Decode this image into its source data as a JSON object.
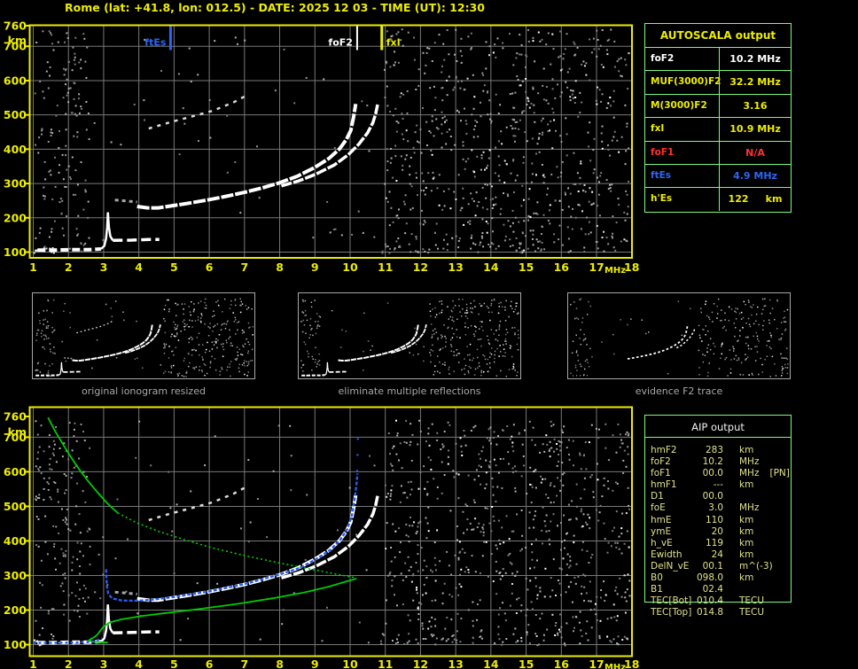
{
  "header": {
    "title": "Rome (lat: +41.8, lon: 012.5) - DATE: 2025 12 03 - TIME (UT): 12:30"
  },
  "autoscala": {
    "title": "AUTOSCALA output",
    "rows": [
      {
        "label": "foF2",
        "value": "10.2 MHz"
      },
      {
        "label": "MUF(3000)F2",
        "value": "32.2 MHz"
      },
      {
        "label": "M(3000)F2",
        "value": "3.16"
      },
      {
        "label": "fxI",
        "value": "10.9 MHz"
      },
      {
        "label": "foF1",
        "value": "N/A"
      },
      {
        "label": "ftEs",
        "value": "4.9 MHz"
      },
      {
        "label": "h'Es",
        "value": "122     km"
      }
    ]
  },
  "aip": {
    "title": "AIP output",
    "rows": [
      {
        "label": "hmF2",
        "value": "283",
        "unit": "km",
        "extra": ""
      },
      {
        "label": "foF2",
        "value": "10.2",
        "unit": "MHz",
        "extra": ""
      },
      {
        "label": "foF1",
        "value": "00.0",
        "unit": "MHz",
        "extra": "[PN]"
      },
      {
        "label": "hmF1",
        "value": "---",
        "unit": "km",
        "extra": ""
      },
      {
        "label": "D1",
        "value": "00.0",
        "unit": "",
        "extra": ""
      },
      {
        "label": "foE",
        "value": "3.0",
        "unit": "MHz",
        "extra": ""
      },
      {
        "label": "hmE",
        "value": "110",
        "unit": "km",
        "extra": ""
      },
      {
        "label": "ymE",
        "value": "20",
        "unit": "km",
        "extra": ""
      },
      {
        "label": "h_vE",
        "value": "119",
        "unit": "km",
        "extra": ""
      },
      {
        "label": "Ewidth",
        "value": "24",
        "unit": "km",
        "extra": ""
      },
      {
        "label": "DelN_vE",
        "value": "00.1",
        "unit": "m^(-3)",
        "extra": ""
      },
      {
        "label": "B0",
        "value": "098.0",
        "unit": "km",
        "extra": ""
      },
      {
        "label": "B1",
        "value": "02.4",
        "unit": "",
        "extra": ""
      },
      {
        "label": "TEC[Bot]",
        "value": "010.4",
        "unit": "TECU",
        "extra": ""
      },
      {
        "label": "TEC[Top]",
        "value": "014.8",
        "unit": "TECU",
        "extra": ""
      }
    ]
  },
  "thumbnails": [
    {
      "caption": "original ionogram resized",
      "traces": [
        "e",
        "cusp",
        "es",
        "ffrag",
        "f2o",
        "f2x",
        "hop2"
      ],
      "seed": 11,
      "noise": [
        [
          1.03,
          2.6,
          103,
          750,
          60,
          "g"
        ],
        [
          2.6,
          10.9,
          110,
          750,
          20,
          "g"
        ],
        [
          10.95,
          17.9,
          102,
          750,
          230,
          "g"
        ],
        [
          10.95,
          17.9,
          102,
          750,
          40,
          "w"
        ]
      ]
    },
    {
      "caption": "eliminate multiple reflections",
      "traces": [
        "e",
        "cusp",
        "es",
        "f2o",
        "f2x"
      ],
      "seed": 23,
      "noise": [
        [
          1.03,
          2.6,
          103,
          750,
          58,
          "g"
        ],
        [
          2.6,
          10.9,
          110,
          750,
          18,
          "g"
        ],
        [
          10.95,
          17.9,
          102,
          750,
          225,
          "g"
        ],
        [
          10.95,
          17.9,
          102,
          750,
          38,
          "w"
        ]
      ]
    },
    {
      "caption": "evidence F2 trace",
      "traces": [
        "e3",
        "spotA",
        "spotB",
        "f2o3",
        "f2x3"
      ],
      "seed": 37,
      "noise": [
        [
          1.03,
          2.6,
          103,
          750,
          40,
          "g"
        ],
        [
          2.6,
          10.9,
          110,
          750,
          14,
          "g"
        ],
        [
          10.95,
          17.9,
          102,
          750,
          175,
          "g"
        ],
        [
          10.95,
          17.9,
          102,
          750,
          28,
          "w"
        ]
      ]
    }
  ],
  "chart_data": {
    "type": "scatter",
    "x_label": "MHz",
    "y_label": "km",
    "x_range": [
      1,
      18
    ],
    "y_range": [
      100,
      760
    ],
    "x_ticks": [
      1,
      2,
      3,
      4,
      5,
      6,
      7,
      8,
      9,
      10,
      11,
      12,
      13,
      14,
      15,
      16,
      17,
      18
    ],
    "x_grid": [
      1,
      2,
      3,
      4,
      5,
      6,
      7,
      8,
      9,
      10,
      11,
      12,
      13,
      14,
      15,
      16,
      17
    ],
    "y_tick_labels": [
      760,
      700,
      600,
      500,
      400,
      300,
      200,
      100
    ],
    "y_grid": [
      100,
      200,
      300,
      400,
      500,
      600,
      700
    ],
    "traces": {
      "e": {
        "c": "#FFFFFF",
        "w": 4,
        "dash": "9 4",
        "pts": [
          [
            1.12,
            106
          ],
          [
            1.6,
            106
          ],
          [
            2.1,
            107
          ],
          [
            2.55,
            107
          ],
          [
            2.92,
            109
          ]
        ]
      },
      "cusp": {
        "c": "#FFFFFF",
        "w": 2.5,
        "dash": "",
        "pts": [
          [
            2.92,
            109
          ],
          [
            3.02,
            118
          ],
          [
            3.07,
            140
          ],
          [
            3.1,
            172
          ],
          [
            3.12,
            216
          ],
          [
            3.15,
            172
          ],
          [
            3.19,
            146
          ],
          [
            3.26,
            134
          ]
        ]
      },
      "es": {
        "c": "#FFFFFF",
        "w": 3.5,
        "dash": "11 5",
        "pts": [
          [
            3.26,
            134
          ],
          [
            3.8,
            135
          ],
          [
            4.3,
            137
          ],
          [
            4.58,
            137
          ]
        ]
      },
      "ffrag": {
        "c": "#A8A8A8",
        "w": 3,
        "dash": "4 4",
        "pts": [
          [
            3.32,
            252
          ],
          [
            3.65,
            249
          ],
          [
            3.95,
            246
          ]
        ]
      },
      "f2o": {
        "c": "#FFFFFF",
        "w": 4,
        "dash": "14 2",
        "pts": [
          [
            3.95,
            233
          ],
          [
            4.25,
            229
          ],
          [
            4.55,
            229
          ],
          [
            5.0,
            236
          ],
          [
            5.5,
            244
          ],
          [
            6.0,
            253
          ],
          [
            6.5,
            263
          ],
          [
            7.0,
            274
          ],
          [
            7.5,
            287
          ],
          [
            8.0,
            302
          ],
          [
            8.5,
            321
          ],
          [
            9.0,
            347
          ],
          [
            9.4,
            373
          ],
          [
            9.7,
            401
          ],
          [
            9.9,
            429
          ],
          [
            10.02,
            455
          ],
          [
            10.1,
            495
          ],
          [
            10.16,
            532
          ]
        ]
      },
      "f2x": {
        "c": "#FFFFFF",
        "w": 3.5,
        "dash": "12 2",
        "pts": [
          [
            8.05,
            293
          ],
          [
            8.55,
            308
          ],
          [
            9.05,
            328
          ],
          [
            9.55,
            354
          ],
          [
            9.95,
            384
          ],
          [
            10.25,
            415
          ],
          [
            10.5,
            448
          ],
          [
            10.65,
            478
          ],
          [
            10.73,
            505
          ],
          [
            10.78,
            530
          ]
        ]
      },
      "hop2": {
        "c": "#DCDCDC",
        "w": 2.5,
        "dash": "4 6",
        "pts": [
          [
            4.28,
            460
          ],
          [
            4.9,
            479
          ],
          [
            5.5,
            495
          ],
          [
            6.1,
            512
          ],
          [
            6.7,
            537
          ],
          [
            7.12,
            560
          ]
        ]
      },
      "e3": {
        "c": "#EEEEEE",
        "w": 2,
        "dash": "2 7",
        "pts": [
          [
            1.25,
            104
          ],
          [
            2.0,
            105
          ],
          [
            2.6,
            106
          ]
        ]
      },
      "spotA": {
        "c": "#FFFFFF",
        "w": 3,
        "dash": "",
        "pts": [
          [
            2.15,
            158
          ],
          [
            2.22,
            160
          ]
        ]
      },
      "spotB": {
        "c": "#FFFFFF",
        "w": 3,
        "dash": "",
        "pts": [
          [
            2.32,
            236
          ],
          [
            2.38,
            238
          ]
        ]
      },
      "f2o3": {
        "c": "#FFFFFF",
        "w": 3.5,
        "dash": "6 5",
        "pts": [
          [
            5.5,
            244
          ],
          [
            6.0,
            253
          ],
          [
            6.5,
            263
          ],
          [
            7.0,
            274
          ],
          [
            7.5,
            287
          ],
          [
            8.0,
            302
          ],
          [
            8.5,
            321
          ],
          [
            9.0,
            347
          ],
          [
            9.4,
            373
          ],
          [
            9.7,
            401
          ],
          [
            9.9,
            429
          ],
          [
            10.02,
            455
          ],
          [
            10.1,
            495
          ],
          [
            10.16,
            532
          ]
        ]
      },
      "f2x3": {
        "c": "#FFFFFF",
        "w": 3,
        "dash": "5 5",
        "pts": [
          [
            9.3,
            335
          ],
          [
            9.7,
            358
          ],
          [
            10.0,
            386
          ],
          [
            10.3,
            418
          ],
          [
            10.5,
            448
          ],
          [
            10.65,
            478
          ],
          [
            10.73,
            505
          ]
        ]
      },
      "blueE": {
        "c": "#2B5CEF",
        "w": 2.4,
        "dash": "3 3",
        "pts": [
          [
            1.0,
            105
          ],
          [
            1.5,
            105
          ],
          [
            2.05,
            106
          ],
          [
            2.5,
            107
          ],
          [
            2.78,
            110
          ],
          [
            2.95,
            120
          ]
        ]
      },
      "blueF": {
        "c": "#2B5CEF",
        "w": 2.4,
        "dash": "4 2",
        "pts": [
          [
            3.07,
            318
          ],
          [
            3.09,
            272
          ],
          [
            3.13,
            247
          ],
          [
            3.24,
            234
          ],
          [
            3.5,
            228
          ],
          [
            3.85,
            227
          ],
          [
            4.3,
            229
          ],
          [
            5.0,
            238
          ],
          [
            6.0,
            254
          ],
          [
            7.0,
            275
          ],
          [
            8.0,
            303
          ],
          [
            8.6,
            323
          ],
          [
            9.05,
            348
          ],
          [
            9.45,
            375
          ],
          [
            9.72,
            403
          ],
          [
            9.92,
            434
          ],
          [
            10.05,
            474
          ],
          [
            10.13,
            520
          ],
          [
            10.18,
            562
          ],
          [
            10.21,
            595
          ]
        ]
      },
      "blueHigh": {
        "c": "#2B5CEF",
        "w": 2.2,
        "dash": "2 16",
        "pts": [
          [
            10.2,
            600
          ],
          [
            10.21,
            648
          ],
          [
            10.22,
            692
          ],
          [
            10.23,
            722
          ]
        ]
      },
      "greenTop": {
        "c": "#00CC00",
        "w": 1.8,
        "dash": "",
        "pts": [
          [
            1.42,
            757
          ],
          [
            1.62,
            718
          ],
          [
            1.84,
            680
          ],
          [
            2.06,
            644
          ],
          [
            2.3,
            608
          ],
          [
            2.55,
            574
          ],
          [
            2.82,
            541
          ],
          [
            3.1,
            509
          ],
          [
            3.4,
            481
          ]
        ]
      },
      "greenDot": {
        "c": "#00CC00",
        "w": 1.6,
        "dash": "2 3",
        "pts": [
          [
            3.4,
            481
          ],
          [
            3.95,
            452
          ],
          [
            4.55,
            428
          ],
          [
            5.25,
            405
          ],
          [
            6.05,
            381
          ],
          [
            6.95,
            359
          ],
          [
            7.95,
            337
          ],
          [
            8.95,
            317
          ],
          [
            9.65,
            303
          ],
          [
            10.08,
            295
          ],
          [
            10.18,
            291
          ]
        ]
      },
      "greenBot": {
        "c": "#00CC00",
        "w": 1.8,
        "dash": "",
        "pts": [
          [
            10.18,
            291
          ],
          [
            9.9,
            283
          ],
          [
            9.4,
            268
          ],
          [
            8.7,
            251
          ],
          [
            7.8,
            234
          ],
          [
            6.8,
            218
          ],
          [
            5.8,
            204
          ],
          [
            4.9,
            193
          ],
          [
            4.1,
            183
          ],
          [
            3.5,
            173
          ],
          [
            3.17,
            164
          ],
          [
            3.0,
            152
          ],
          [
            2.9,
            140
          ],
          [
            2.82,
            129
          ],
          [
            2.74,
            122
          ],
          [
            2.63,
            116
          ],
          [
            2.57,
            111
          ],
          [
            2.7,
            108
          ],
          [
            2.92,
            107
          ],
          [
            3.12,
            106
          ]
        ]
      }
    },
    "plots": [
      {
        "name": "scaled-ionogram",
        "markers": [
          {
            "label": "ftEs",
            "f": 4.9,
            "color": "#2B66F2",
            "w": 3,
            "side": "left"
          },
          {
            "label": "foF2",
            "f": 10.2,
            "color": "#FFFFFF",
            "w": 2,
            "side": "left"
          },
          {
            "label": "fxI",
            "f": 10.9,
            "color": "#EDED00",
            "w": 3,
            "side": "right"
          }
        ],
        "traces": [
          "e",
          "cusp",
          "es",
          "ffrag",
          "f2o",
          "f2x",
          "hop2"
        ],
        "seed": 7,
        "noise": [
          [
            1.03,
            2.6,
            103,
            750,
            150,
            "g"
          ],
          [
            1.0,
            1.65,
            100,
            118,
            14,
            "w"
          ],
          [
            2.6,
            10.9,
            105,
            755,
            48,
            "g"
          ],
          [
            10.95,
            17.93,
            102,
            752,
            640,
            "g"
          ],
          [
            10.95,
            17.93,
            102,
            752,
            80,
            "w"
          ],
          [
            10.4,
            17.9,
            100,
            135,
            45,
            "g"
          ]
        ]
      },
      {
        "name": "restored-ionogram-with-profile",
        "markers": [],
        "traces": [
          "e",
          "cusp",
          "es",
          "ffrag",
          "f2o",
          "f2x",
          "hop2",
          "greenTop",
          "greenDot",
          "greenBot",
          "blueE",
          "blueF",
          "blueHigh"
        ],
        "seed": 99,
        "noise": [
          [
            1.03,
            2.6,
            103,
            750,
            140,
            "g"
          ],
          [
            1.0,
            1.6,
            100,
            116,
            10,
            "w"
          ],
          [
            2.6,
            10.9,
            105,
            755,
            55,
            "g"
          ],
          [
            10.95,
            17.93,
            102,
            752,
            640,
            "g"
          ],
          [
            10.95,
            17.93,
            102,
            752,
            85,
            "w"
          ],
          [
            10.4,
            17.9,
            100,
            135,
            45,
            "g"
          ],
          [
            1.03,
            2.2,
            440,
            700,
            25,
            "g"
          ]
        ]
      }
    ]
  }
}
